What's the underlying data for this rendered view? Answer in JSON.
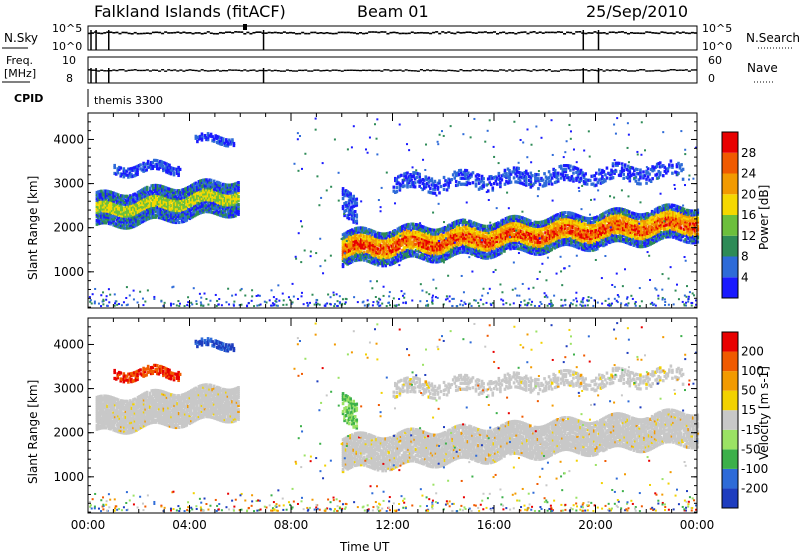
{
  "header": {
    "station": "Falkland Islands (fitACF)",
    "beam": "Beam 01",
    "date": "25/Sep/2010"
  },
  "strip_panels": {
    "nsky": {
      "left_label": "N.Sky",
      "left_ticks": [
        "10^5",
        "10^0"
      ],
      "right_label": "N.Search",
      "right_ticks": [
        "10^5",
        "10^0"
      ]
    },
    "freq": {
      "left_label_top": "Freq.",
      "left_label_bottom": "[MHz]",
      "left_ticks": [
        "10",
        "8"
      ],
      "right_label": "Nave",
      "right_ticks": [
        "60",
        "0"
      ]
    },
    "cpid": {
      "label": "CPID",
      "program": "themis 3300"
    }
  },
  "chart_data": [
    {
      "type": "heatmap",
      "name": "power",
      "ylabel": "Slant Range [km]",
      "xlabel": "",
      "ylim": [
        180,
        4600
      ],
      "xlim_hours": [
        0,
        24
      ],
      "y_ticks": [
        1000,
        2000,
        3000,
        4000
      ],
      "colorbar": {
        "label": "Power [dB]",
        "ticks": [
          "4",
          "8",
          "12",
          "16",
          "20",
          "24",
          "28"
        ],
        "colors": [
          "#1a1aff",
          "#2e6bd8",
          "#2e8b57",
          "#6cbf3c",
          "#f5d800",
          "#f29a00",
          "#f05a00",
          "#e80000"
        ]
      }
    },
    {
      "type": "heatmap",
      "name": "velocity",
      "ylabel": "Slant Range [km]",
      "xlabel": "Time UT",
      "ylim": [
        180,
        4600
      ],
      "xlim_hours": [
        0,
        24
      ],
      "y_ticks": [
        1000,
        2000,
        3000,
        4000
      ],
      "x_ticks": [
        "00:00",
        "04:00",
        "08:00",
        "12:00",
        "16:00",
        "20:00",
        "00:00"
      ],
      "colorbar": {
        "label": "Velocity [m s-1]",
        "ticks": [
          "200",
          "100",
          "50",
          "15",
          "-15",
          "-50",
          "-100",
          "-200"
        ],
        "colors": [
          "#1e3dbf",
          "#2e6bd8",
          "#3cb04a",
          "#9be264",
          "#c8c8c8",
          "#f2d200",
          "#f29a00",
          "#f05a00",
          "#e80000"
        ]
      }
    }
  ]
}
